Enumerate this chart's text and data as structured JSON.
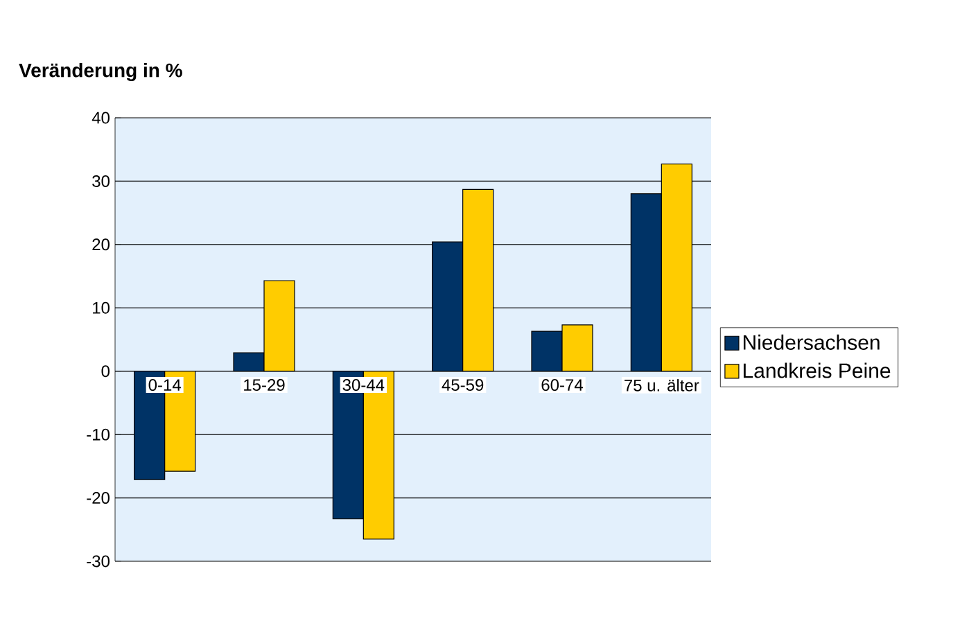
{
  "chart_data": {
    "type": "bar",
    "ylabel": "Veränderung in %",
    "categories": [
      "0-14",
      "15-29",
      "30-44",
      "45-59",
      "60-74",
      "75 u. älter"
    ],
    "series": [
      {
        "name": "Niedersachsen",
        "color": "#003366",
        "values": [
          -17.1,
          2.9,
          -23.3,
          20.4,
          6.3,
          28.0
        ]
      },
      {
        "name": "Landkreis Peine",
        "color": "#ffcc00",
        "values": [
          -15.8,
          14.3,
          -26.5,
          28.7,
          7.3,
          32.7
        ]
      }
    ],
    "ylim": [
      -30,
      40
    ],
    "yticks": [
      -30,
      -20,
      -10,
      0,
      10,
      20,
      30,
      40
    ],
    "grid": "y",
    "legend": "right"
  }
}
